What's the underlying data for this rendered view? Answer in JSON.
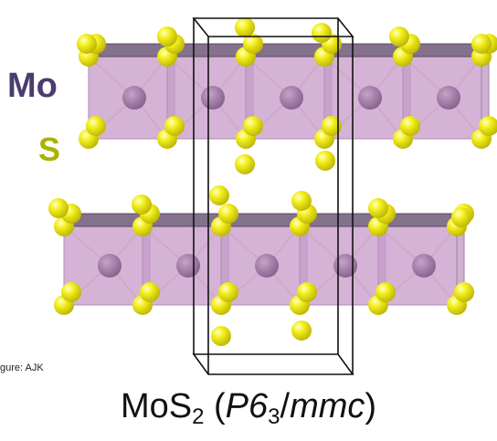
{
  "labels": {
    "mo": "Mo",
    "s": "S",
    "credit": "gure: AJK"
  },
  "formula": {
    "compound_base": "MoS",
    "compound_sub": "2",
    "open": " (",
    "space_group_main": "P6",
    "space_group_sub": "3",
    "space_group_slash": "/",
    "space_group_rest": "mmc",
    "close": ")"
  },
  "colors": {
    "mo_label": "#4b3d6e",
    "s_label": "#a8b400",
    "sulfur_atom": "#f2ef1a",
    "molybdenum_atom": "#8a5e90",
    "polyhedron_face": "#c89dcb",
    "unit_cell": "#111111"
  }
}
